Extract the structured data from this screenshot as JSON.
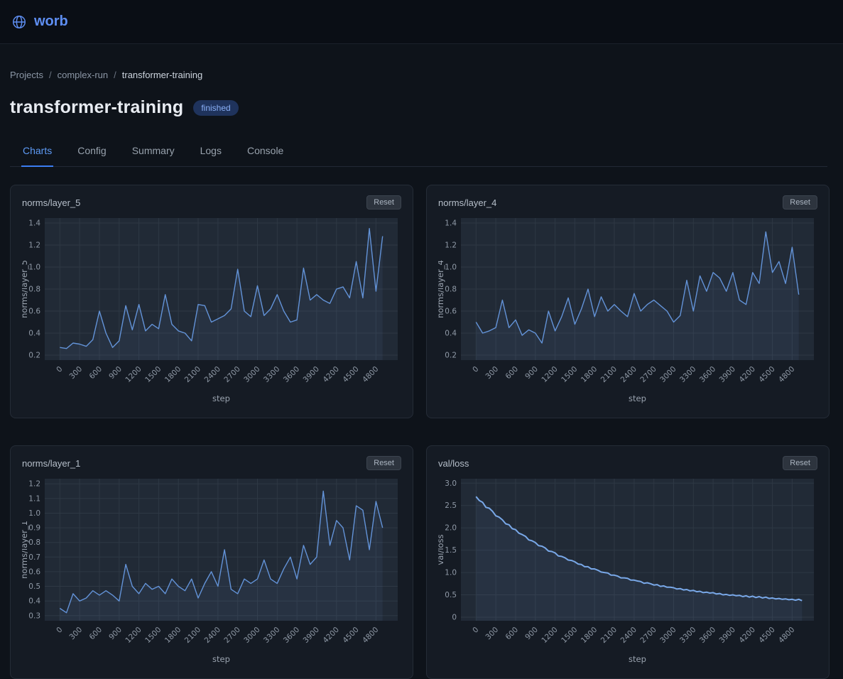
{
  "brand": {
    "name": "worb"
  },
  "breadcrumb": {
    "items": [
      "Projects",
      "complex-run",
      "transformer-training"
    ],
    "separator": "/"
  },
  "page": {
    "title": "transformer-training",
    "status": "finished"
  },
  "tabs": [
    {
      "label": "Charts",
      "active": true
    },
    {
      "label": "Config",
      "active": false
    },
    {
      "label": "Summary",
      "active": false
    },
    {
      "label": "Logs",
      "active": false
    },
    {
      "label": "Console",
      "active": false
    }
  ],
  "labels": {
    "reset": "Reset"
  },
  "colors": {
    "accent_blue": "#5e8ef2",
    "active_tab": "#5e9bf6",
    "badge_bg": "#1f335c",
    "badge_text": "#8ab0f8",
    "card_bg": "#151b24",
    "page_bg": "#0e131a"
  },
  "chart_style": {
    "plot_bg": "#212a36",
    "grid": "#2e3844",
    "area_fill": "rgba(109,154,222,0.08)"
  },
  "chart_data": [
    {
      "type": "line",
      "title": "norms/layer_5",
      "xlabel": "step",
      "ylabel": "norms/layer_5",
      "x_start": 0,
      "x_step": 100,
      "xlim": [
        -230,
        5130
      ],
      "ylim": [
        0.155,
        1.445
      ],
      "xticks": [
        0,
        300,
        600,
        900,
        1200,
        1500,
        1800,
        2100,
        2400,
        2700,
        3000,
        3300,
        3600,
        3900,
        4200,
        4500,
        4800
      ],
      "ytick_values": [
        0.2,
        0.4,
        0.6,
        0.8,
        1.0,
        1.2,
        1.4
      ],
      "ytick_labels": [
        "0.2",
        "0.4",
        "0.6",
        "0.8",
        "1.0",
        "1.2",
        "1.4"
      ],
      "color": "#6393d8",
      "stroke_width": 1.4,
      "values": [
        0.27,
        0.26,
        0.31,
        0.3,
        0.28,
        0.34,
        0.6,
        0.4,
        0.27,
        0.33,
        0.65,
        0.43,
        0.66,
        0.42,
        0.48,
        0.44,
        0.75,
        0.48,
        0.42,
        0.4,
        0.33,
        0.66,
        0.65,
        0.5,
        0.53,
        0.56,
        0.62,
        0.98,
        0.6,
        0.55,
        0.83,
        0.56,
        0.62,
        0.75,
        0.6,
        0.5,
        0.52,
        0.99,
        0.7,
        0.75,
        0.7,
        0.67,
        0.8,
        0.82,
        0.72,
        1.05,
        0.72,
        1.35,
        0.78,
        1.28
      ]
    },
    {
      "type": "line",
      "title": "norms/layer_4",
      "xlabel": "step",
      "ylabel": "norms/layer_4",
      "x_start": 0,
      "x_step": 100,
      "xlim": [
        -230,
        5130
      ],
      "ylim": [
        0.155,
        1.445
      ],
      "xticks": [
        0,
        300,
        600,
        900,
        1200,
        1500,
        1800,
        2100,
        2400,
        2700,
        3000,
        3300,
        3600,
        3900,
        4200,
        4500,
        4800
      ],
      "ytick_values": [
        0.2,
        0.4,
        0.6,
        0.8,
        1.0,
        1.2,
        1.4
      ],
      "ytick_labels": [
        "0.2",
        "0.4",
        "0.6",
        "0.8",
        "1.0",
        "1.2",
        "1.4"
      ],
      "color": "#6393d8",
      "stroke_width": 1.4,
      "values": [
        0.5,
        0.4,
        0.42,
        0.45,
        0.7,
        0.45,
        0.52,
        0.38,
        0.43,
        0.4,
        0.31,
        0.6,
        0.42,
        0.55,
        0.72,
        0.48,
        0.62,
        0.8,
        0.55,
        0.73,
        0.6,
        0.66,
        0.6,
        0.55,
        0.76,
        0.6,
        0.66,
        0.7,
        0.65,
        0.6,
        0.5,
        0.56,
        0.88,
        0.6,
        0.92,
        0.78,
        0.95,
        0.9,
        0.78,
        0.95,
        0.7,
        0.66,
        0.95,
        0.85,
        1.32,
        0.95,
        1.05,
        0.85,
        1.18,
        0.75
      ]
    },
    {
      "type": "line",
      "title": "norms/layer_1",
      "xlabel": "step",
      "ylabel": "norms/layer_1",
      "x_start": 0,
      "x_step": 100,
      "xlim": [
        -230,
        5130
      ],
      "ylim": [
        0.265,
        1.235
      ],
      "xticks": [
        0,
        300,
        600,
        900,
        1200,
        1500,
        1800,
        2100,
        2400,
        2700,
        3000,
        3300,
        3600,
        3900,
        4200,
        4500,
        4800
      ],
      "ytick_values": [
        0.3,
        0.4,
        0.5,
        0.6,
        0.7,
        0.8,
        0.9,
        1.0,
        1.1,
        1.2
      ],
      "ytick_labels": [
        "0.3",
        "0.4",
        "0.5",
        "0.6",
        "0.7",
        "0.8",
        "0.9",
        "1.0",
        "1.1",
        "1.2"
      ],
      "color": "#6393d8",
      "stroke_width": 1.4,
      "values": [
        0.35,
        0.32,
        0.45,
        0.4,
        0.42,
        0.47,
        0.44,
        0.47,
        0.44,
        0.4,
        0.65,
        0.5,
        0.45,
        0.52,
        0.48,
        0.5,
        0.45,
        0.55,
        0.5,
        0.47,
        0.55,
        0.42,
        0.52,
        0.6,
        0.5,
        0.75,
        0.48,
        0.45,
        0.55,
        0.52,
        0.55,
        0.68,
        0.55,
        0.52,
        0.62,
        0.7,
        0.55,
        0.78,
        0.65,
        0.7,
        1.15,
        0.78,
        0.95,
        0.9,
        0.68,
        1.05,
        1.02,
        0.75,
        1.08,
        0.9
      ]
    },
    {
      "type": "line",
      "title": "val/loss",
      "xlabel": "step",
      "ylabel": "val/loss",
      "x_start": 0,
      "x_step": 50,
      "xlim": [
        -230,
        5130
      ],
      "ylim": [
        -0.08,
        3.1
      ],
      "xticks": [
        0,
        300,
        600,
        900,
        1200,
        1500,
        1800,
        2100,
        2400,
        2700,
        3000,
        3300,
        3600,
        3900,
        4200,
        4500,
        4800
      ],
      "ytick_values": [
        0,
        0.5,
        1.0,
        1.5,
        2.0,
        2.5,
        3.0
      ],
      "ytick_labels": [
        "0",
        "0.5",
        "1.0",
        "1.5",
        "2.0",
        "2.5",
        "3.0"
      ],
      "color": "#79a8e8",
      "stroke_width": 2,
      "values": [
        2.7,
        2.61,
        2.57,
        2.46,
        2.44,
        2.37,
        2.27,
        2.24,
        2.18,
        2.09,
        2.07,
        1.98,
        1.96,
        1.88,
        1.85,
        1.81,
        1.73,
        1.71,
        1.67,
        1.6,
        1.59,
        1.55,
        1.48,
        1.47,
        1.44,
        1.37,
        1.36,
        1.33,
        1.28,
        1.27,
        1.24,
        1.19,
        1.18,
        1.13,
        1.13,
        1.08,
        1.08,
        1.05,
        1.01,
        1.0,
        0.99,
        0.94,
        0.94,
        0.92,
        0.88,
        0.88,
        0.87,
        0.83,
        0.83,
        0.81,
        0.8,
        0.76,
        0.77,
        0.75,
        0.72,
        0.73,
        0.69,
        0.7,
        0.67,
        0.67,
        0.66,
        0.63,
        0.64,
        0.61,
        0.62,
        0.59,
        0.6,
        0.57,
        0.58,
        0.55,
        0.56,
        0.54,
        0.55,
        0.52,
        0.53,
        0.5,
        0.51,
        0.49,
        0.5,
        0.48,
        0.49,
        0.46,
        0.48,
        0.45,
        0.47,
        0.44,
        0.46,
        0.43,
        0.45,
        0.42,
        0.43,
        0.41,
        0.42,
        0.4,
        0.41,
        0.39,
        0.4,
        0.38,
        0.4,
        0.37
      ]
    }
  ]
}
